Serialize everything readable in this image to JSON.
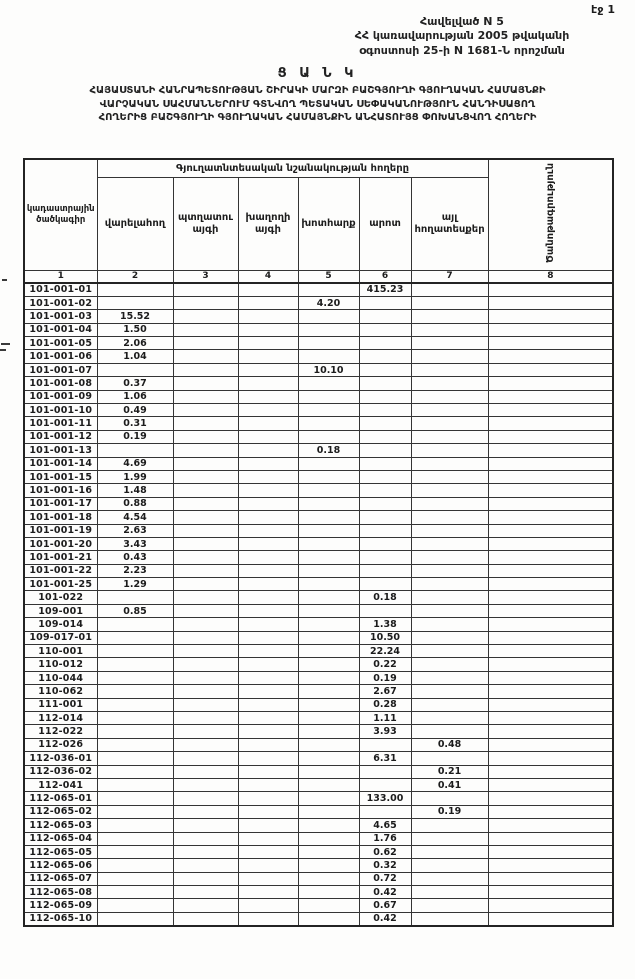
{
  "page": {
    "page_number_label": "էջ 1",
    "appendix_line1": "Հավելված N 5",
    "appendix_line2": "ՀՀ կառավարության 2005 թվականի",
    "appendix_line3": "օգոստոսի 25-ի N 1681-Ն որոշման",
    "doc_title": "Ց Ա Ն Կ",
    "subtitle_line1": "ՀԱՅԱՍՏԱՆԻ ՀԱՆՐԱՊԵՏՈՒԹՅԱՆ ՇԻՐԱԿԻ ՄԱՐԶԻ ԲԱՇԳՅՈՒՂԻ ԳՅՈՒՂԱԿԱՆ ՀԱՄԱՅՆՔԻ",
    "subtitle_line2": "ՎԱՐՉԱԿԱՆ ՍԱՀՄԱՆՆԵՐՈՒՄ ԳՏՆՎՈՂ ՊԵՏԱԿԱՆ ՍԵՓԱԿԱՆՈՒԹՅՈՒՆ ՀԱՆԴԻՍԱՑՈՂ",
    "subtitle_line3": "ՀՈՂԵՐԻՑ ԲԱՇԳՅՈՒՂԻ ԳՅՈՒՂԱԿԱՆ ՀԱՄԱՅՆՔԻՆ ԱՆՀԱՏՈՒՅՑ ՓՈԽԱՆՑՎՈՂ ՀՈՂԵՐԻ"
  },
  "table": {
    "group_header": "Գյուղատնտեսական նշանակության հողերը",
    "col1_header": "կադաստրային ծածկագիր",
    "note_header": "Ծանոթագրություն",
    "sub_headers": [
      "վարելահող",
      "պտղատու այգի",
      "խաղողի այգի",
      "խոտհարք",
      "արոտ",
      "այլ հողատեսքեր"
    ],
    "number_row": [
      "1",
      "2",
      "3",
      "4",
      "5",
      "6",
      "7",
      "8"
    ],
    "rows": [
      [
        "101-001-01",
        "",
        "",
        "",
        "",
        "415.23",
        "",
        ""
      ],
      [
        "101-001-02",
        "",
        "",
        "",
        "4.20",
        "",
        "",
        ""
      ],
      [
        "101-001-03",
        "15.52",
        "",
        "",
        "",
        "",
        "",
        ""
      ],
      [
        "101-001-04",
        "1.50",
        "",
        "",
        "",
        "",
        "",
        ""
      ],
      [
        "101-001-05",
        "2.06",
        "",
        "",
        "",
        "",
        "",
        ""
      ],
      [
        "101-001-06",
        "1.04",
        "",
        "",
        "",
        "",
        "",
        ""
      ],
      [
        "101-001-07",
        "",
        "",
        "",
        "10.10",
        "",
        "",
        ""
      ],
      [
        "101-001-08",
        "0.37",
        "",
        "",
        "",
        "",
        "",
        ""
      ],
      [
        "101-001-09",
        "1.06",
        "",
        "",
        "",
        "",
        "",
        ""
      ],
      [
        "101-001-10",
        "0.49",
        "",
        "",
        "",
        "",
        "",
        ""
      ],
      [
        "101-001-11",
        "0.31",
        "",
        "",
        "",
        "",
        "",
        ""
      ],
      [
        "101-001-12",
        "0.19",
        "",
        "",
        "",
        "",
        "",
        ""
      ],
      [
        "101-001-13",
        "",
        "",
        "",
        "0.18",
        "",
        "",
        ""
      ],
      [
        "101-001-14",
        "4.69",
        "",
        "",
        "",
        "",
        "",
        ""
      ],
      [
        "101-001-15",
        "1.99",
        "",
        "",
        "",
        "",
        "",
        ""
      ],
      [
        "101-001-16",
        "1.48",
        "",
        "",
        "",
        "",
        "",
        ""
      ],
      [
        "101-001-17",
        "0.88",
        "",
        "",
        "",
        "",
        "",
        ""
      ],
      [
        "101-001-18",
        "4.54",
        "",
        "",
        "",
        "",
        "",
        ""
      ],
      [
        "101-001-19",
        "2.63",
        "",
        "",
        "",
        "",
        "",
        ""
      ],
      [
        "101-001-20",
        "3.43",
        "",
        "",
        "",
        "",
        "",
        ""
      ],
      [
        "101-001-21",
        "0.43",
        "",
        "",
        "",
        "",
        "",
        ""
      ],
      [
        "101-001-22",
        "2.23",
        "",
        "",
        "",
        "",
        "",
        ""
      ],
      [
        "101-001-25",
        "1.29",
        "",
        "",
        "",
        "",
        "",
        ""
      ],
      [
        "101-022",
        "",
        "",
        "",
        "",
        "0.18",
        "",
        ""
      ],
      [
        "109-001",
        "0.85",
        "",
        "",
        "",
        "",
        "",
        ""
      ],
      [
        "109-014",
        "",
        "",
        "",
        "",
        "1.38",
        "",
        ""
      ],
      [
        "109-017-01",
        "",
        "",
        "",
        "",
        "10.50",
        "",
        ""
      ],
      [
        "110-001",
        "",
        "",
        "",
        "",
        "22.24",
        "",
        ""
      ],
      [
        "110-012",
        "",
        "",
        "",
        "",
        "0.22",
        "",
        ""
      ],
      [
        "110-044",
        "",
        "",
        "",
        "",
        "0.19",
        "",
        ""
      ],
      [
        "110-062",
        "",
        "",
        "",
        "",
        "2.67",
        "",
        ""
      ],
      [
        "111-001",
        "",
        "",
        "",
        "",
        "0.28",
        "",
        ""
      ],
      [
        "112-014",
        "",
        "",
        "",
        "",
        "1.11",
        "",
        ""
      ],
      [
        "112-022",
        "",
        "",
        "",
        "",
        "3.93",
        "",
        ""
      ],
      [
        "112-026",
        "",
        "",
        "",
        "",
        "",
        "0.48",
        ""
      ],
      [
        "112-036-01",
        "",
        "",
        "",
        "",
        "6.31",
        "",
        ""
      ],
      [
        "112-036-02",
        "",
        "",
        "",
        "",
        "",
        "0.21",
        ""
      ],
      [
        "112-041",
        "",
        "",
        "",
        "",
        "",
        "0.41",
        ""
      ],
      [
        "112-065-01",
        "",
        "",
        "",
        "",
        "133.00",
        "",
        ""
      ],
      [
        "112-065-02",
        "",
        "",
        "",
        "",
        "",
        "0.19",
        ""
      ],
      [
        "112-065-03",
        "",
        "",
        "",
        "",
        "4.65",
        "",
        ""
      ],
      [
        "112-065-04",
        "",
        "",
        "",
        "",
        "1.76",
        "",
        ""
      ],
      [
        "112-065-05",
        "",
        "",
        "",
        "",
        "0.62",
        "",
        ""
      ],
      [
        "112-065-06",
        "",
        "",
        "",
        "",
        "0.32",
        "",
        ""
      ],
      [
        "112-065-07",
        "",
        "",
        "",
        "",
        "0.72",
        "",
        ""
      ],
      [
        "112-065-08",
        "",
        "",
        "",
        "",
        "0.42",
        "",
        ""
      ],
      [
        "112-065-09",
        "",
        "",
        "",
        "",
        "0.67",
        "",
        ""
      ],
      [
        "112-065-10",
        "",
        "",
        "",
        "",
        "0.42",
        "",
        ""
      ]
    ]
  }
}
